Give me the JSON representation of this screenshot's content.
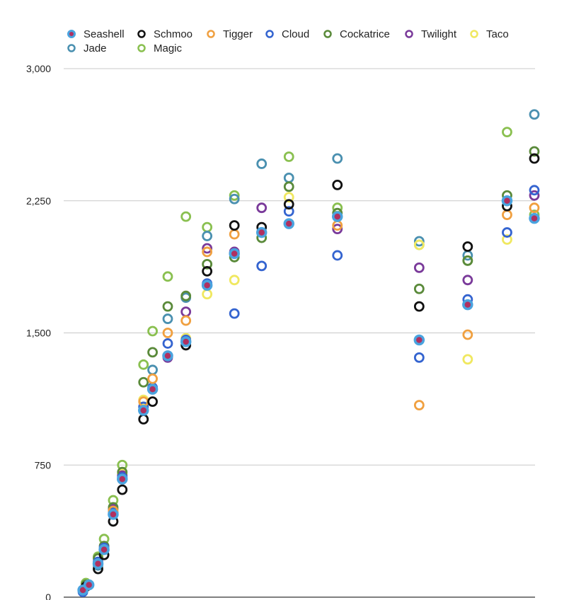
{
  "chart_data": {
    "type": "scatter",
    "title": "",
    "xlabel": "",
    "ylabel": "",
    "ylim": [
      0,
      3000
    ],
    "xlim": [
      0,
      15.3
    ],
    "yticks": [
      0,
      750,
      1500,
      2250,
      3000
    ],
    "ytick_labels": [
      "0",
      "750",
      "1,500",
      "2,250",
      "3,000"
    ],
    "grid": true,
    "legend_position": "top",
    "series": [
      {
        "name": "Seashell",
        "color": "#4aa3df",
        "style": "filled-dot",
        "x": [
          0.4,
          0.6,
          0.9,
          1.1,
          1.4,
          1.7,
          2.4,
          2.7,
          3.2,
          3.8,
          4.5,
          5.4,
          6.3,
          7.2,
          8.8,
          11.5,
          13.1,
          14.4,
          15.3
        ],
        "y": [
          40,
          70,
          190,
          270,
          470,
          670,
          1060,
          1180,
          1370,
          1450,
          1770,
          1950,
          2070,
          2120,
          2160,
          1460,
          1660,
          2250,
          2150
        ]
      },
      {
        "name": "Schmoo",
        "color": "#111111",
        "style": "ring",
        "x": [
          0.5,
          0.9,
          1.1,
          1.4,
          1.7,
          2.4,
          2.7,
          3.2,
          3.8,
          4.5,
          5.4,
          6.3,
          7.2,
          8.8,
          11.5,
          13.1,
          14.4,
          15.3
        ],
        "y": [
          60,
          160,
          240,
          430,
          610,
          1010,
          1110,
          1370,
          1430,
          1850,
          2110,
          2100,
          2230,
          2340,
          1650,
          1990,
          2220,
          2490
        ]
      },
      {
        "name": "Tigger",
        "color": "#f0a040",
        "style": "ring",
        "x": [
          0.5,
          0.9,
          1.1,
          1.4,
          1.7,
          2.4,
          2.7,
          3.2,
          3.8,
          4.5,
          5.4,
          7.2,
          8.8,
          11.5,
          13.1,
          14.4,
          15.3
        ],
        "y": [
          60,
          190,
          270,
          490,
          670,
          1110,
          1240,
          1500,
          1570,
          1960,
          2060,
          2120,
          2110,
          1090,
          1490,
          2170,
          2210
        ]
      },
      {
        "name": "Cloud",
        "color": "#3464d0",
        "style": "ring",
        "x": [
          0.4,
          0.9,
          1.1,
          1.4,
          1.7,
          2.4,
          2.7,
          3.2,
          3.8,
          4.5,
          5.4,
          6.3,
          7.2,
          8.8,
          11.5,
          13.1,
          14.4,
          15.3
        ],
        "y": [
          30,
          200,
          280,
          480,
          680,
          1080,
          1190,
          1440,
          1460,
          1780,
          1610,
          1880,
          2190,
          1940,
          1360,
          1690,
          2070,
          2310
        ]
      },
      {
        "name": "Cockatrice",
        "color": "#5a8a3a",
        "style": "ring",
        "x": [
          0.5,
          0.9,
          1.1,
          1.4,
          1.7,
          2.4,
          2.7,
          3.2,
          3.8,
          4.5,
          5.4,
          6.3,
          7.2,
          8.8,
          11.5,
          13.1,
          14.4,
          15.3
        ],
        "y": [
          70,
          220,
          290,
          510,
          710,
          1220,
          1390,
          1650,
          1710,
          1890,
          1930,
          2040,
          2330,
          2180,
          1750,
          1910,
          2280,
          2530
        ]
      },
      {
        "name": "Twilight",
        "color": "#7a3a9a",
        "style": "ring",
        "x": [
          1.4,
          1.7,
          3.2,
          3.8,
          4.5,
          5.4,
          6.3,
          8.8,
          11.5,
          13.1,
          14.4,
          15.3
        ],
        "y": [
          500,
          690,
          1360,
          1620,
          1980,
          1960,
          2210,
          2090,
          1870,
          1800,
          2250,
          2280
        ]
      },
      {
        "name": "Taco",
        "color": "#f0e860",
        "style": "ring",
        "x": [
          1.4,
          1.7,
          2.4,
          3.8,
          4.5,
          5.4,
          7.2,
          11.5,
          13.1,
          14.4
        ],
        "y": [
          500,
          700,
          1120,
          1470,
          1720,
          1800,
          2270,
          2000,
          1350,
          2030
        ]
      },
      {
        "name": "Jade",
        "color": "#4a90b0",
        "style": "ring",
        "x": [
          0.4,
          0.9,
          1.1,
          1.4,
          1.7,
          2.4,
          2.7,
          3.2,
          3.8,
          4.5,
          5.4,
          6.3,
          7.2,
          8.8,
          11.5,
          13.1,
          15.3
        ],
        "y": [
          40,
          180,
          270,
          480,
          680,
          1080,
          1290,
          1580,
          1700,
          2050,
          2260,
          2460,
          2380,
          2490,
          2020,
          1940,
          2740
        ]
      },
      {
        "name": "Magic",
        "color": "#8ac050",
        "style": "ring",
        "x": [
          0.5,
          0.9,
          1.1,
          1.4,
          1.7,
          2.4,
          2.7,
          3.2,
          3.8,
          4.5,
          5.4,
          7.2,
          8.8,
          11.5,
          13.1,
          14.4,
          15.3
        ],
        "y": [
          80,
          230,
          330,
          550,
          750,
          1320,
          1510,
          1820,
          2160,
          2100,
          2280,
          2500,
          2210,
          2000,
          1910,
          2640,
          2170
        ]
      }
    ]
  }
}
